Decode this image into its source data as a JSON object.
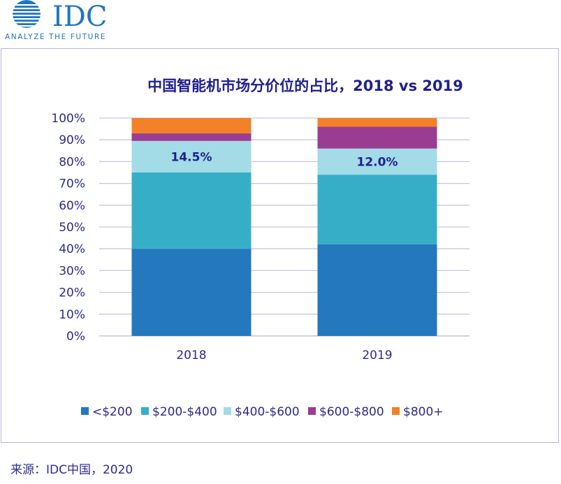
{
  "brand": {
    "name": "IDC",
    "tagline": "ANALYZE THE FUTURE"
  },
  "chart_data": {
    "type": "bar",
    "stacked": true,
    "title": "中国智能机市场分价位的占比，2018 vs 2019",
    "categories": [
      "2018",
      "2019"
    ],
    "ylim": [
      0,
      100
    ],
    "yticks": [
      "0%",
      "10%",
      "20%",
      "30%",
      "40%",
      "50%",
      "60%",
      "70%",
      "80%",
      "90%",
      "100%"
    ],
    "grid": true,
    "legend_position": "bottom",
    "series": [
      {
        "name": "<$200",
        "color": "#2378be",
        "values": [
          40.0,
          42.0
        ]
      },
      {
        "name": "$200-$400",
        "color": "#37aec8",
        "values": [
          35.0,
          32.0
        ]
      },
      {
        "name": "$400-$600",
        "color": "#a3dbe7",
        "values": [
          14.5,
          12.0
        ]
      },
      {
        "name": "$600-$800",
        "color": "#9a3c92",
        "values": [
          3.5,
          10.0
        ]
      },
      {
        "name": "$800+",
        "color": "#f28127",
        "values": [
          7.0,
          4.0
        ]
      }
    ],
    "annotations": [
      {
        "category": "2018",
        "series": "$400-$600",
        "text": "14.5%"
      },
      {
        "category": "2019",
        "series": "$400-$600",
        "text": "12.0%"
      }
    ]
  },
  "source": "来源：IDC中国，2020"
}
